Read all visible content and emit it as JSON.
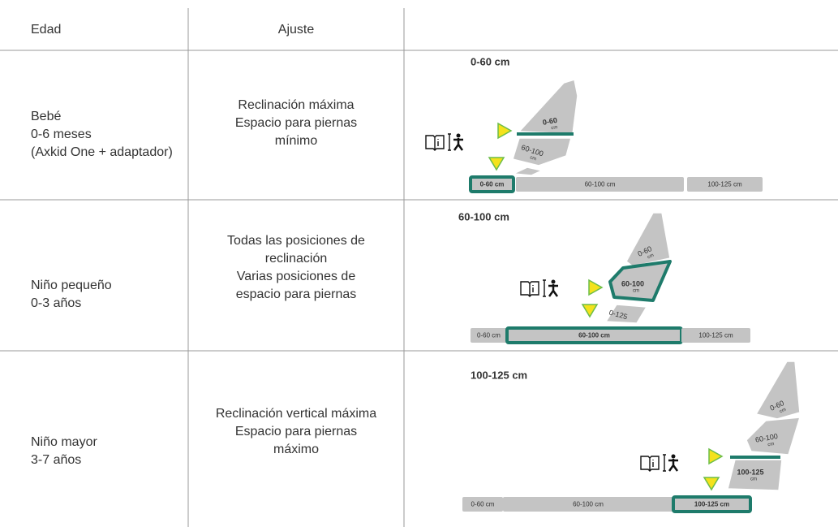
{
  "table": {
    "headers": [
      "Edad",
      "Ajuste"
    ],
    "rows": [
      {
        "age": [
          "Bebé",
          "0-6 meses",
          "(Axkid One + adaptador)"
        ],
        "setting": [
          "Reclinación máxima",
          "Espacio para piernas",
          "mínimo"
        ],
        "diagram": {
          "title": "0-60 cm",
          "seat": [
            {
              "range": "0-60",
              "unit": "cm"
            },
            {
              "range": "60-100",
              "unit": "cm"
            }
          ],
          "base": [
            "0-60 cm",
            "60-100 cm",
            "100-125 cm"
          ]
        }
      },
      {
        "age": [
          "Niño pequeño",
          "0-3 años"
        ],
        "setting": [
          "Todas las posiciones de",
          "reclinación",
          "Varias posiciones de",
          "espacio para piernas"
        ],
        "diagram": {
          "title": "60-100 cm",
          "seat": [
            {
              "range": "0-60",
              "unit": "cm"
            },
            {
              "range": "60-100",
              "unit": "cm"
            },
            {
              "range": "0-125",
              "unit": ""
            }
          ],
          "base": [
            "0-60 cm",
            "60-100 cm",
            "100-125 cm"
          ]
        }
      },
      {
        "age": [
          "Niño mayor",
          "3-7 años"
        ],
        "setting": [
          "Reclinación vertical máxima",
          "Espacio para piernas",
          "máximo"
        ],
        "diagram": {
          "title": "100-125 cm",
          "seat": [
            {
              "range": "0-60",
              "unit": "cm"
            },
            {
              "range": "60-100",
              "unit": "cm"
            },
            {
              "range": "100-125",
              "unit": "cm"
            }
          ],
          "base": [
            "0-60 cm",
            "60-100 cm",
            "100-125 cm"
          ]
        }
      }
    ]
  }
}
